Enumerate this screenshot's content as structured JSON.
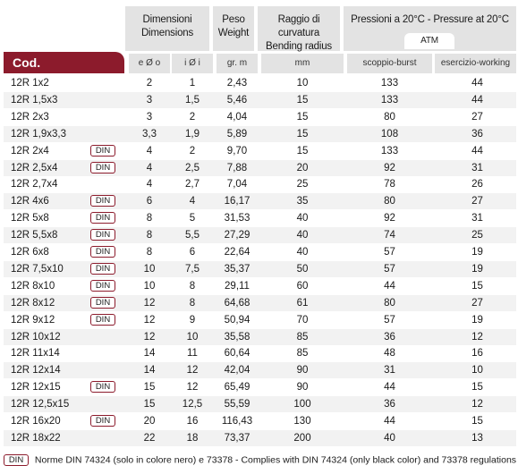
{
  "headers": {
    "dimensioni": "Dimensioni",
    "dimensions": "Dimensions",
    "peso": "Peso",
    "weight": "Weight",
    "raggio": "Raggio di curvatura",
    "bending": "Bending radius",
    "pressioni": "Pressioni a 20°C - Pressure at 20°C",
    "atm": "ATM",
    "cod": "Cod."
  },
  "subheaders": {
    "outer": "e Ø o",
    "inner": "i Ø i",
    "gram": "gr. m",
    "mm": "mm",
    "burst": "scoppio-burst",
    "working": "esercizio-working"
  },
  "din_label": "DIN",
  "rows": [
    {
      "code": "12R 1x2",
      "din": false,
      "eo": "2",
      "ei": "1",
      "gm": "2,43",
      "mm": "10",
      "burst": "133",
      "work": "44"
    },
    {
      "code": "12R 1,5x3",
      "din": false,
      "eo": "3",
      "ei": "1,5",
      "gm": "5,46",
      "mm": "15",
      "burst": "133",
      "work": "44"
    },
    {
      "code": "12R 2x3",
      "din": false,
      "eo": "3",
      "ei": "2",
      "gm": "4,04",
      "mm": "15",
      "burst": "80",
      "work": "27"
    },
    {
      "code": "12R 1,9x3,3",
      "din": false,
      "eo": "3,3",
      "ei": "1,9",
      "gm": "5,89",
      "mm": "15",
      "burst": "108",
      "work": "36"
    },
    {
      "code": "12R 2x4",
      "din": true,
      "eo": "4",
      "ei": "2",
      "gm": "9,70",
      "mm": "15",
      "burst": "133",
      "work": "44"
    },
    {
      "code": "12R 2,5x4",
      "din": true,
      "eo": "4",
      "ei": "2,5",
      "gm": "7,88",
      "mm": "20",
      "burst": "92",
      "work": "31"
    },
    {
      "code": "12R 2,7x4",
      "din": false,
      "eo": "4",
      "ei": "2,7",
      "gm": "7,04",
      "mm": "25",
      "burst": "78",
      "work": "26"
    },
    {
      "code": "12R 4x6",
      "din": true,
      "eo": "6",
      "ei": "4",
      "gm": "16,17",
      "mm": "35",
      "burst": "80",
      "work": "27"
    },
    {
      "code": "12R 5x8",
      "din": true,
      "eo": "8",
      "ei": "5",
      "gm": "31,53",
      "mm": "40",
      "burst": "92",
      "work": "31"
    },
    {
      "code": "12R 5,5x8",
      "din": true,
      "eo": "8",
      "ei": "5,5",
      "gm": "27,29",
      "mm": "40",
      "burst": "74",
      "work": "25"
    },
    {
      "code": "12R 6x8",
      "din": true,
      "eo": "8",
      "ei": "6",
      "gm": "22,64",
      "mm": "40",
      "burst": "57",
      "work": "19"
    },
    {
      "code": "12R 7,5x10",
      "din": true,
      "eo": "10",
      "ei": "7,5",
      "gm": "35,37",
      "mm": "50",
      "burst": "57",
      "work": "19"
    },
    {
      "code": "12R 8x10",
      "din": true,
      "eo": "10",
      "ei": "8",
      "gm": "29,11",
      "mm": "60",
      "burst": "44",
      "work": "15"
    },
    {
      "code": "12R 8x12",
      "din": true,
      "eo": "12",
      "ei": "8",
      "gm": "64,68",
      "mm": "61",
      "burst": "80",
      "work": "27"
    },
    {
      "code": "12R 9x12",
      "din": true,
      "eo": "12",
      "ei": "9",
      "gm": "50,94",
      "mm": "70",
      "burst": "57",
      "work": "19"
    },
    {
      "code": "12R 10x12",
      "din": false,
      "eo": "12",
      "ei": "10",
      "gm": "35,58",
      "mm": "85",
      "burst": "36",
      "work": "12"
    },
    {
      "code": "12R 11x14",
      "din": false,
      "eo": "14",
      "ei": "11",
      "gm": "60,64",
      "mm": "85",
      "burst": "48",
      "work": "16"
    },
    {
      "code": "12R 12x14",
      "din": false,
      "eo": "14",
      "ei": "12",
      "gm": "42,04",
      "mm": "90",
      "burst": "31",
      "work": "10"
    },
    {
      "code": "12R 12x15",
      "din": true,
      "eo": "15",
      "ei": "12",
      "gm": "65,49",
      "mm": "90",
      "burst": "44",
      "work": "15"
    },
    {
      "code": "12R 12,5x15",
      "din": false,
      "eo": "15",
      "ei": "12,5",
      "gm": "55,59",
      "mm": "100",
      "burst": "36",
      "work": "12"
    },
    {
      "code": "12R 16x20",
      "din": true,
      "eo": "20",
      "ei": "16",
      "gm": "116,43",
      "mm": "130",
      "burst": "44",
      "work": "15"
    },
    {
      "code": "12R 18x22",
      "din": false,
      "eo": "22",
      "ei": "18",
      "gm": "73,37",
      "mm": "200",
      "burst": "40",
      "work": "13"
    }
  ],
  "footnote": "Norme DIN 74324 (solo in colore nero) e 73378 -  Complies with DIN 74324 (only black color) and 73378 regulations",
  "colors": {
    "accent": "#8c1b2c",
    "header_bg": "#e3e3e3",
    "row_shade": "#f2f2f2"
  }
}
